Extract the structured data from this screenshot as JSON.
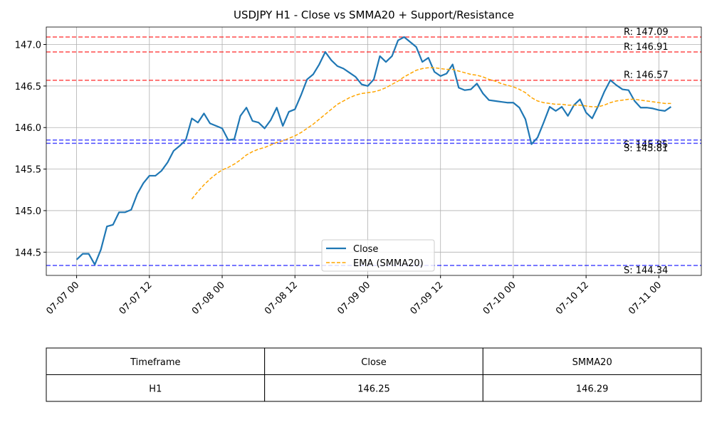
{
  "chart_data": {
    "type": "line",
    "title": "USDJPY H1 - Close vs SMMA20 + Support/Resistance",
    "x": [
      "07-07 00",
      "07-07 01",
      "07-07 02",
      "07-07 03",
      "07-07 04",
      "07-07 05",
      "07-07 06",
      "07-07 07",
      "07-07 08",
      "07-07 09",
      "07-07 10",
      "07-07 11",
      "07-07 12",
      "07-07 13",
      "07-07 14",
      "07-07 15",
      "07-07 16",
      "07-07 17",
      "07-07 18",
      "07-07 19",
      "07-07 20",
      "07-07 21",
      "07-07 22",
      "07-07 23",
      "07-08 00",
      "07-08 01",
      "07-08 02",
      "07-08 03",
      "07-08 04",
      "07-08 05",
      "07-08 06",
      "07-08 07",
      "07-08 08",
      "07-08 09",
      "07-08 10",
      "07-08 11",
      "07-08 12",
      "07-08 13",
      "07-08 14",
      "07-08 15",
      "07-08 16",
      "07-08 17",
      "07-08 18",
      "07-08 19",
      "07-08 20",
      "07-08 21",
      "07-08 22",
      "07-08 23",
      "07-09 00",
      "07-09 01",
      "07-09 02",
      "07-09 03",
      "07-09 04",
      "07-09 05",
      "07-09 06",
      "07-09 07",
      "07-09 08",
      "07-09 09",
      "07-09 10",
      "07-09 11",
      "07-09 12",
      "07-09 13",
      "07-09 14",
      "07-09 15",
      "07-09 16",
      "07-09 17",
      "07-09 18",
      "07-09 19",
      "07-09 20",
      "07-09 21",
      "07-09 22",
      "07-09 23",
      "07-10 00",
      "07-10 01",
      "07-10 02",
      "07-10 03",
      "07-10 04",
      "07-10 05",
      "07-10 06",
      "07-10 07",
      "07-10 08",
      "07-10 09",
      "07-10 10",
      "07-10 11",
      "07-10 12",
      "07-10 13",
      "07-10 14",
      "07-10 15",
      "07-10 16",
      "07-10 17",
      "07-10 18",
      "07-10 19",
      "07-10 20",
      "07-10 21",
      "07-10 22",
      "07-10 23",
      "07-11 00",
      "07-11 01",
      "07-11 02"
    ],
    "series": [
      {
        "name": "Close",
        "color": "#1f77b4",
        "style": "solid",
        "values": [
          144.41,
          144.48,
          144.48,
          144.35,
          144.53,
          144.81,
          144.83,
          144.98,
          144.98,
          145.01,
          145.2,
          145.33,
          145.42,
          145.42,
          145.48,
          145.58,
          145.72,
          145.78,
          145.85,
          146.11,
          146.06,
          146.17,
          146.05,
          146.02,
          145.99,
          145.85,
          145.86,
          146.14,
          146.24,
          146.08,
          146.06,
          145.99,
          146.09,
          146.24,
          146.02,
          146.19,
          146.22,
          146.39,
          146.58,
          146.64,
          146.76,
          146.91,
          146.81,
          146.74,
          146.71,
          146.66,
          146.61,
          146.52,
          146.5,
          146.58,
          146.86,
          146.79,
          146.86,
          147.05,
          147.09,
          147.03,
          146.97,
          146.79,
          146.84,
          146.67,
          146.62,
          146.65,
          146.76,
          146.48,
          146.45,
          146.46,
          146.53,
          146.41,
          146.33,
          146.32,
          146.31,
          146.3,
          146.3,
          146.24,
          146.1,
          145.8,
          145.88,
          146.06,
          146.25,
          146.2,
          146.25,
          146.14,
          146.27,
          146.34,
          146.18,
          146.11,
          146.26,
          146.43,
          146.57,
          146.51,
          146.46,
          146.45,
          146.32,
          146.24,
          146.24,
          146.23,
          146.21,
          146.2,
          146.25
        ]
      },
      {
        "name": "EMA (SMMA20)",
        "color": "orange",
        "style": "dashed",
        "values": [
          null,
          null,
          null,
          null,
          null,
          null,
          null,
          null,
          null,
          null,
          null,
          null,
          null,
          null,
          null,
          null,
          null,
          null,
          null,
          145.14,
          145.23,
          145.31,
          145.38,
          145.44,
          145.49,
          145.52,
          145.56,
          145.61,
          145.67,
          145.71,
          145.74,
          145.76,
          145.79,
          145.82,
          145.84,
          145.87,
          145.9,
          145.94,
          145.99,
          146.04,
          146.1,
          146.16,
          146.22,
          146.28,
          146.32,
          146.36,
          146.39,
          146.41,
          146.42,
          146.43,
          146.45,
          146.48,
          146.52,
          146.56,
          146.61,
          146.65,
          146.69,
          146.71,
          146.72,
          146.72,
          146.71,
          146.7,
          146.7,
          146.68,
          146.66,
          146.64,
          146.63,
          146.61,
          146.58,
          146.56,
          146.53,
          146.51,
          146.49,
          146.46,
          146.42,
          146.36,
          146.32,
          146.3,
          146.29,
          146.28,
          146.28,
          146.27,
          146.27,
          146.27,
          146.26,
          146.25,
          146.25,
          146.27,
          146.3,
          146.32,
          146.33,
          146.34,
          146.34,
          146.33,
          146.32,
          146.31,
          146.3,
          146.29,
          146.29
        ]
      }
    ],
    "resistance": [
      {
        "value": 147.09,
        "label": "R: 147.09"
      },
      {
        "value": 146.91,
        "label": "R: 146.91"
      },
      {
        "value": 146.57,
        "label": "R: 146.57"
      }
    ],
    "support": [
      {
        "value": 145.85,
        "label": "S: 145.85"
      },
      {
        "value": 145.81,
        "label": "S: 145.81"
      },
      {
        "value": 144.34,
        "label": "S: 144.34"
      }
    ],
    "resistance_color": "red",
    "support_color": "blue",
    "xlim": [
      "07-06 19",
      "07-11 07"
    ],
    "xticks": [
      "07-07 00",
      "07-07 12",
      "07-08 00",
      "07-08 12",
      "07-09 00",
      "07-09 12",
      "07-10 00",
      "07-10 12",
      "07-11 00"
    ],
    "ylim": [
      144.22,
      147.21
    ],
    "yticks": [
      144.5,
      {
        "value": 145.0,
        "label": "145.0"
      },
      145.5,
      {
        "value": 146.0,
        "label": "146.0"
      },
      146.5,
      {
        "value": 147.0,
        "label": "147.0"
      }
    ],
    "grid": true,
    "legend": "lower center"
  },
  "table": {
    "columns": [
      "Timeframe",
      "Close",
      "SMMA20"
    ],
    "rows": [
      [
        "H1",
        "146.25",
        "146.29"
      ]
    ]
  }
}
